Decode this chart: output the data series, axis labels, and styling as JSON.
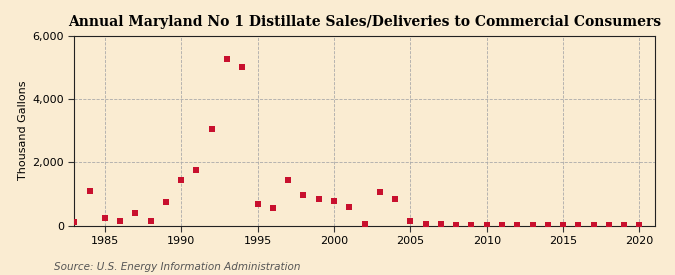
{
  "title": "Annual Maryland No 1 Distillate Sales/Deliveries to Commercial Consumers",
  "ylabel": "Thousand Gallons",
  "source": "Source: U.S. Energy Information Administration",
  "background_color": "#faecd2",
  "plot_bg_color": "#faecd2",
  "marker_color": "#c8102e",
  "xlim": [
    1983,
    2021
  ],
  "ylim": [
    0,
    6000
  ],
  "yticks": [
    0,
    2000,
    4000,
    6000
  ],
  "xticks": [
    1985,
    1990,
    1995,
    2000,
    2005,
    2010,
    2015,
    2020
  ],
  "years": [
    1983,
    1984,
    1985,
    1986,
    1987,
    1988,
    1989,
    1990,
    1991,
    1992,
    1993,
    1994,
    1995,
    1996,
    1997,
    1998,
    1999,
    2000,
    2001,
    2002,
    2003,
    2004,
    2005,
    2006,
    2007,
    2008,
    2009,
    2010,
    2011,
    2012,
    2013,
    2014,
    2015,
    2016,
    2017,
    2018,
    2019,
    2020
  ],
  "values": [
    100,
    1100,
    250,
    130,
    400,
    150,
    750,
    1450,
    1750,
    3050,
    5250,
    5000,
    680,
    550,
    1450,
    950,
    850,
    780,
    600,
    60,
    1050,
    850,
    130,
    60,
    40,
    30,
    20,
    20,
    30,
    15,
    30,
    10,
    20,
    15,
    20,
    15,
    10,
    10
  ],
  "title_fontsize": 10,
  "tick_labelsize": 8,
  "ylabel_fontsize": 8,
  "source_fontsize": 7.5
}
